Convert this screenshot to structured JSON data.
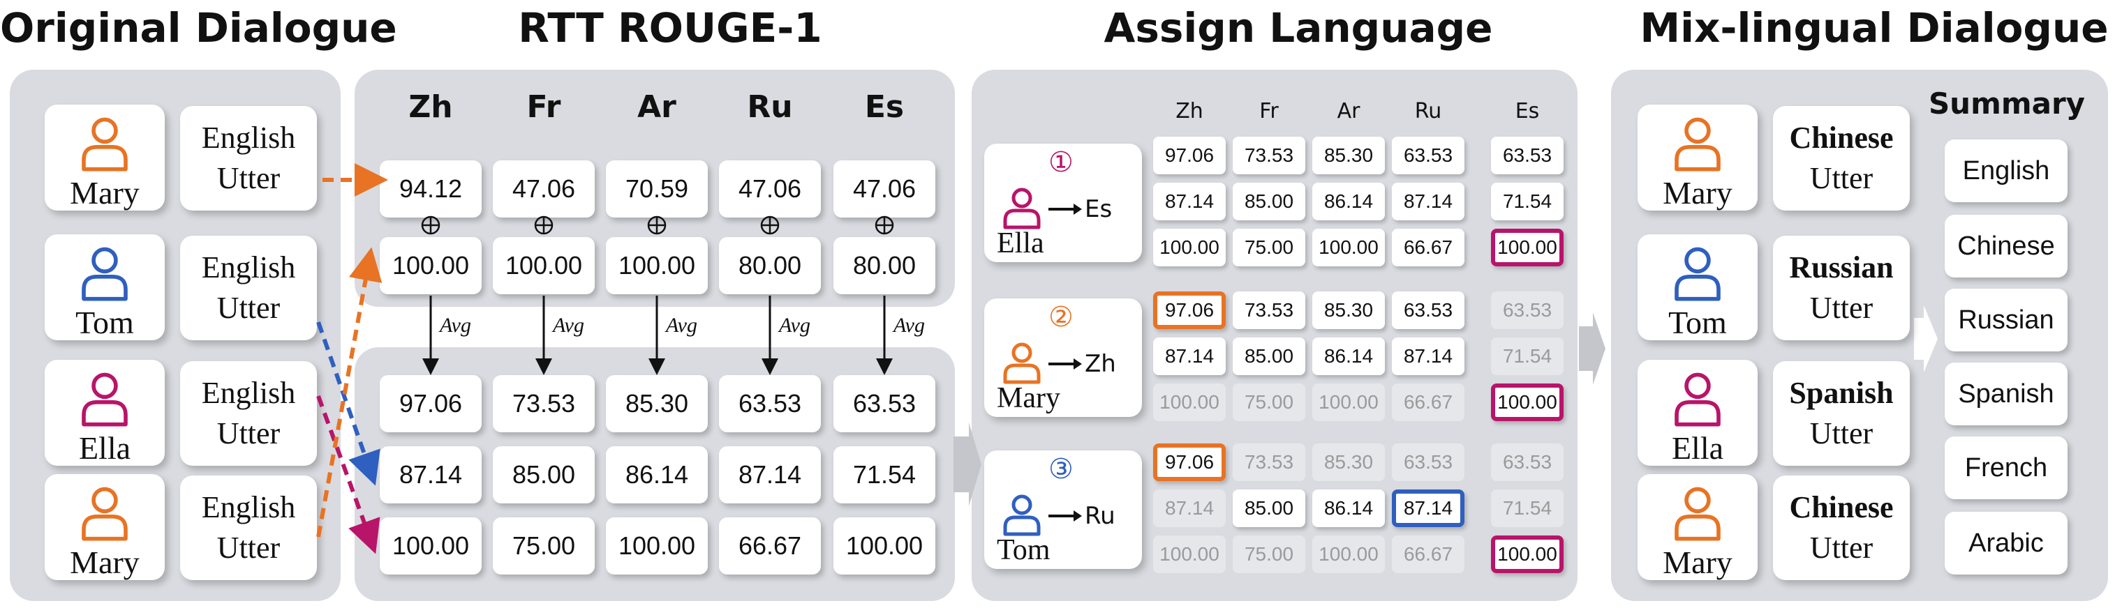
{
  "titles": {
    "original": "Original Dialogue",
    "rtt": "RTT ROUGE-1",
    "assign": "Assign Language",
    "mix": "Mix-lingual Dialogue"
  },
  "colors": {
    "orange": "#e87324",
    "blue": "#2f5fbf",
    "magenta": "#b8146a",
    "panel": "#d9dbe0"
  },
  "original": {
    "speakers": [
      {
        "name": "Mary",
        "color": "orange",
        "utter_line1": "English",
        "utter_line2": "Utter"
      },
      {
        "name": "Tom",
        "color": "blue",
        "utter_line1": "English",
        "utter_line2": "Utter"
      },
      {
        "name": "Ella",
        "color": "magenta",
        "utter_line1": "English",
        "utter_line2": "Utter"
      },
      {
        "name": "Mary",
        "color": "orange",
        "utter_line1": "English",
        "utter_line2": "Utter"
      }
    ]
  },
  "rtt": {
    "languages": [
      "Zh",
      "Fr",
      "Ar",
      "Ru",
      "Es"
    ],
    "row_a": [
      "94.12",
      "47.06",
      "70.59",
      "47.06",
      "47.06"
    ],
    "row_b": [
      "100.00",
      "100.00",
      "100.00",
      "80.00",
      "80.00"
    ],
    "avg_label": "Avg",
    "avg_rows": [
      [
        "97.06",
        "73.53",
        "85.30",
        "63.53",
        "63.53"
      ],
      [
        "87.14",
        "85.00",
        "86.14",
        "87.14",
        "71.54"
      ],
      [
        "100.00",
        "75.00",
        "100.00",
        "66.67",
        "100.00"
      ]
    ]
  },
  "assign": {
    "languages": [
      "Zh",
      "Fr",
      "Ar",
      "Ru",
      "Es"
    ],
    "steps": [
      {
        "num": "①",
        "speaker": "Ella",
        "lang": "Es",
        "color": "magenta",
        "rows": [
          [
            {
              "v": "97.06",
              "s": "w"
            },
            {
              "v": "73.53",
              "s": "w"
            },
            {
              "v": "85.30",
              "s": "w"
            },
            {
              "v": "63.53",
              "s": "w"
            },
            {
              "v": "63.53",
              "s": "w"
            }
          ],
          [
            {
              "v": "87.14",
              "s": "w"
            },
            {
              "v": "85.00",
              "s": "w"
            },
            {
              "v": "86.14",
              "s": "w"
            },
            {
              "v": "87.14",
              "s": "w"
            },
            {
              "v": "71.54",
              "s": "w"
            }
          ],
          [
            {
              "v": "100.00",
              "s": "w"
            },
            {
              "v": "75.00",
              "s": "w"
            },
            {
              "v": "100.00",
              "s": "w"
            },
            {
              "v": "66.67",
              "s": "w"
            },
            {
              "v": "100.00",
              "s": "bp"
            }
          ]
        ]
      },
      {
        "num": "②",
        "speaker": "Mary",
        "lang": "Zh",
        "color": "orange",
        "rows": [
          [
            {
              "v": "97.06",
              "s": "bo"
            },
            {
              "v": "73.53",
              "s": "w"
            },
            {
              "v": "85.30",
              "s": "w"
            },
            {
              "v": "63.53",
              "s": "w"
            },
            {
              "v": "63.53",
              "s": "g"
            }
          ],
          [
            {
              "v": "87.14",
              "s": "w"
            },
            {
              "v": "85.00",
              "s": "w"
            },
            {
              "v": "86.14",
              "s": "w"
            },
            {
              "v": "87.14",
              "s": "w"
            },
            {
              "v": "71.54",
              "s": "g"
            }
          ],
          [
            {
              "v": "100.00",
              "s": "g"
            },
            {
              "v": "75.00",
              "s": "g"
            },
            {
              "v": "100.00",
              "s": "g"
            },
            {
              "v": "66.67",
              "s": "g"
            },
            {
              "v": "100.00",
              "s": "bp"
            }
          ]
        ]
      },
      {
        "num": "③",
        "speaker": "Tom",
        "lang": "Ru",
        "color": "blue",
        "rows": [
          [
            {
              "v": "97.06",
              "s": "bo"
            },
            {
              "v": "73.53",
              "s": "g"
            },
            {
              "v": "85.30",
              "s": "g"
            },
            {
              "v": "63.53",
              "s": "g"
            },
            {
              "v": "63.53",
              "s": "g"
            }
          ],
          [
            {
              "v": "87.14",
              "s": "g"
            },
            {
              "v": "85.00",
              "s": "w"
            },
            {
              "v": "86.14",
              "s": "w"
            },
            {
              "v": "87.14",
              "s": "bb"
            },
            {
              "v": "71.54",
              "s": "g"
            }
          ],
          [
            {
              "v": "100.00",
              "s": "g"
            },
            {
              "v": "75.00",
              "s": "g"
            },
            {
              "v": "100.00",
              "s": "g"
            },
            {
              "v": "66.67",
              "s": "g"
            },
            {
              "v": "100.00",
              "s": "bp"
            }
          ]
        ]
      }
    ]
  },
  "mix": {
    "speakers": [
      {
        "name": "Mary",
        "color": "orange",
        "lang": "Chinese",
        "utter": "Utter"
      },
      {
        "name": "Tom",
        "color": "blue",
        "lang": "Russian",
        "utter": "Utter"
      },
      {
        "name": "Ella",
        "color": "magenta",
        "lang": "Spanish",
        "utter": "Utter"
      },
      {
        "name": "Mary",
        "color": "orange",
        "lang": "Chinese",
        "utter": "Utter"
      }
    ],
    "summary_title": "Summary",
    "summaries": [
      "English",
      "Chinese",
      "Russian",
      "Spanish",
      "French",
      "Arabic"
    ]
  }
}
